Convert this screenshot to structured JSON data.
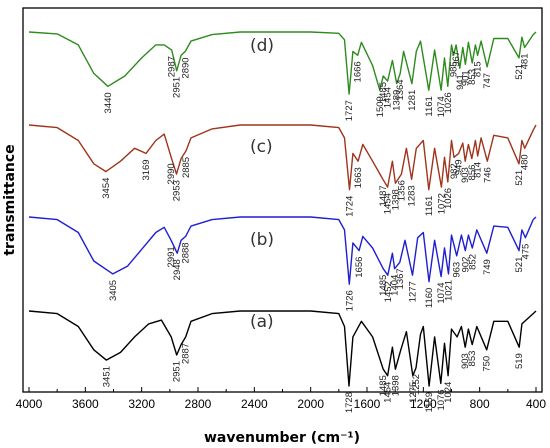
{
  "chart_data": {
    "type": "line",
    "xlabel": "wavenumber (cm⁻¹)",
    "ylabel": "transmittance",
    "xlim": [
      4000,
      400
    ],
    "x_ticks": [
      4000,
      3600,
      3200,
      2800,
      2400,
      2000,
      1600,
      1200,
      800,
      400
    ],
    "series": [
      {
        "name": "(d)",
        "color": "#2e8b1e",
        "points": [
          [
            4000,
            1.0
          ],
          [
            3800,
            0.985
          ],
          [
            3650,
            0.9
          ],
          [
            3540,
            0.68
          ],
          [
            3440,
            0.58
          ],
          [
            3320,
            0.66
          ],
          [
            3200,
            0.8
          ],
          [
            3100,
            0.9
          ],
          [
            3040,
            0.9
          ],
          [
            2987,
            0.86
          ],
          [
            2951,
            0.7
          ],
          [
            2920,
            0.82
          ],
          [
            2890,
            0.85
          ],
          [
            2850,
            0.93
          ],
          [
            2700,
            0.98
          ],
          [
            2500,
            1.0
          ],
          [
            2000,
            1.0
          ],
          [
            1800,
            0.99
          ],
          [
            1760,
            0.94
          ],
          [
            1727,
            0.52
          ],
          [
            1700,
            0.85
          ],
          [
            1666,
            0.82
          ],
          [
            1640,
            0.92
          ],
          [
            1560,
            0.74
          ],
          [
            1509,
            0.55
          ],
          [
            1485,
            0.66
          ],
          [
            1454,
            0.62
          ],
          [
            1420,
            0.78
          ],
          [
            1389,
            0.6
          ],
          [
            1364,
            0.68
          ],
          [
            1340,
            0.85
          ],
          [
            1281,
            0.6
          ],
          [
            1250,
            0.85
          ],
          [
            1220,
            0.93
          ],
          [
            1161,
            0.55
          ],
          [
            1120,
            0.86
          ],
          [
            1074,
            0.55
          ],
          [
            1050,
            0.8
          ],
          [
            1026,
            0.58
          ],
          [
            1000,
            0.9
          ],
          [
            985,
            0.82
          ],
          [
            967,
            0.9
          ],
          [
            941,
            0.72
          ],
          [
            920,
            0.88
          ],
          [
            901,
            0.75
          ],
          [
            880,
            0.92
          ],
          [
            853,
            0.76
          ],
          [
            830,
            0.9
          ],
          [
            815,
            0.82
          ],
          [
            790,
            0.93
          ],
          [
            747,
            0.73
          ],
          [
            700,
            0.95
          ],
          [
            600,
            0.95
          ],
          [
            521,
            0.8
          ],
          [
            500,
            0.96
          ],
          [
            481,
            0.88
          ],
          [
            420,
            0.98
          ],
          [
            400,
            1.0
          ]
        ],
        "peak_labels": [
          "3440",
          "2987",
          "2951",
          "2890",
          "1727",
          "1666",
          "1509",
          "1485",
          "1454",
          "1389",
          "1364",
          "1281",
          "1161",
          "1074",
          "1026",
          "985",
          "967",
          "941",
          "901",
          "853",
          "815",
          "747",
          "521",
          "481"
        ]
      },
      {
        "name": "(c)",
        "color": "#a0341c",
        "points": [
          [
            4000,
            1.0
          ],
          [
            3800,
            0.98
          ],
          [
            3650,
            0.88
          ],
          [
            3540,
            0.7
          ],
          [
            3454,
            0.64
          ],
          [
            3350,
            0.72
          ],
          [
            3250,
            0.82
          ],
          [
            3169,
            0.78
          ],
          [
            3100,
            0.88
          ],
          [
            3040,
            0.93
          ],
          [
            2990,
            0.75
          ],
          [
            2953,
            0.62
          ],
          [
            2920,
            0.74
          ],
          [
            2885,
            0.8
          ],
          [
            2850,
            0.9
          ],
          [
            2700,
            0.97
          ],
          [
            2500,
            1.0
          ],
          [
            2000,
            1.0
          ],
          [
            1800,
            0.98
          ],
          [
            1760,
            0.9
          ],
          [
            1724,
            0.5
          ],
          [
            1700,
            0.78
          ],
          [
            1663,
            0.72
          ],
          [
            1630,
            0.85
          ],
          [
            1560,
            0.72
          ],
          [
            1487,
            0.58
          ],
          [
            1454,
            0.52
          ],
          [
            1420,
            0.72
          ],
          [
            1398,
            0.55
          ],
          [
            1356,
            0.62
          ],
          [
            1320,
            0.82
          ],
          [
            1283,
            0.58
          ],
          [
            1250,
            0.82
          ],
          [
            1200,
            0.88
          ],
          [
            1161,
            0.5
          ],
          [
            1120,
            0.82
          ],
          [
            1072,
            0.52
          ],
          [
            1050,
            0.75
          ],
          [
            1026,
            0.56
          ],
          [
            1000,
            0.88
          ],
          [
            982,
            0.75
          ],
          [
            949,
            0.78
          ],
          [
            920,
            0.86
          ],
          [
            903,
            0.72
          ],
          [
            880,
            0.85
          ],
          [
            856,
            0.74
          ],
          [
            830,
            0.88
          ],
          [
            814,
            0.76
          ],
          [
            790,
            0.9
          ],
          [
            746,
            0.72
          ],
          [
            700,
            0.92
          ],
          [
            600,
            0.9
          ],
          [
            521,
            0.7
          ],
          [
            500,
            0.88
          ],
          [
            480,
            0.82
          ],
          [
            420,
            0.96
          ],
          [
            400,
            1.0
          ]
        ],
        "peak_labels": [
          "3454",
          "3169",
          "2990",
          "2953",
          "2885",
          "1724",
          "1663",
          "1487",
          "1454",
          "1398",
          "1356",
          "1283",
          "1161",
          "1072",
          "1026",
          "982",
          "949",
          "903",
          "856",
          "814",
          "746",
          "521",
          "480"
        ]
      },
      {
        "name": "(b)",
        "color": "#1f1fd0",
        "points": [
          [
            4000,
            1.0
          ],
          [
            3800,
            0.98
          ],
          [
            3650,
            0.88
          ],
          [
            3540,
            0.66
          ],
          [
            3405,
            0.56
          ],
          [
            3300,
            0.62
          ],
          [
            3200,
            0.75
          ],
          [
            3100,
            0.88
          ],
          [
            3040,
            0.92
          ],
          [
            2991,
            0.82
          ],
          [
            2948,
            0.72
          ],
          [
            2920,
            0.82
          ],
          [
            2888,
            0.85
          ],
          [
            2850,
            0.93
          ],
          [
            2700,
            0.98
          ],
          [
            2500,
            1.0
          ],
          [
            2000,
            1.0
          ],
          [
            1800,
            0.98
          ],
          [
            1760,
            0.9
          ],
          [
            1726,
            0.48
          ],
          [
            1700,
            0.8
          ],
          [
            1656,
            0.74
          ],
          [
            1630,
            0.85
          ],
          [
            1560,
            0.76
          ],
          [
            1485,
            0.6
          ],
          [
            1452,
            0.55
          ],
          [
            1420,
            0.72
          ],
          [
            1404,
            0.6
          ],
          [
            1367,
            0.65
          ],
          [
            1330,
            0.82
          ],
          [
            1277,
            0.55
          ],
          [
            1240,
            0.84
          ],
          [
            1200,
            0.88
          ],
          [
            1160,
            0.5
          ],
          [
            1120,
            0.82
          ],
          [
            1074,
            0.54
          ],
          [
            1050,
            0.76
          ],
          [
            1021,
            0.56
          ],
          [
            1000,
            0.86
          ],
          [
            963,
            0.7
          ],
          [
            930,
            0.86
          ],
          [
            902,
            0.74
          ],
          [
            880,
            0.86
          ],
          [
            852,
            0.76
          ],
          [
            820,
            0.9
          ],
          [
            749,
            0.72
          ],
          [
            700,
            0.93
          ],
          [
            600,
            0.92
          ],
          [
            521,
            0.74
          ],
          [
            500,
            0.9
          ],
          [
            475,
            0.84
          ],
          [
            420,
            0.98
          ],
          [
            400,
            1.0
          ]
        ],
        "peak_labels": [
          "3405",
          "2991",
          "2948",
          "2888",
          "1726",
          "1656",
          "1485",
          "1452",
          "1404",
          "1367",
          "1277",
          "1160",
          "1074",
          "1021",
          "963",
          "902",
          "852",
          "749",
          "521",
          "475"
        ]
      },
      {
        "name": "(a)",
        "color": "#000000",
        "points": [
          [
            4000,
            1.0
          ],
          [
            3800,
            0.98
          ],
          [
            3650,
            0.88
          ],
          [
            3540,
            0.7
          ],
          [
            3451,
            0.62
          ],
          [
            3350,
            0.68
          ],
          [
            3250,
            0.8
          ],
          [
            3150,
            0.9
          ],
          [
            3060,
            0.93
          ],
          [
            2990,
            0.8
          ],
          [
            2951,
            0.66
          ],
          [
            2920,
            0.74
          ],
          [
            2887,
            0.8
          ],
          [
            2850,
            0.92
          ],
          [
            2700,
            0.98
          ],
          [
            2500,
            1.0
          ],
          [
            2000,
            1.0
          ],
          [
            1800,
            0.98
          ],
          [
            1760,
            0.88
          ],
          [
            1728,
            0.42
          ],
          [
            1700,
            0.8
          ],
          [
            1640,
            0.92
          ],
          [
            1560,
            0.8
          ],
          [
            1485,
            0.55
          ],
          [
            1454,
            0.5
          ],
          [
            1420,
            0.72
          ],
          [
            1398,
            0.55
          ],
          [
            1360,
            0.7
          ],
          [
            1320,
            0.84
          ],
          [
            1275,
            0.5
          ],
          [
            1252,
            0.56
          ],
          [
            1220,
            0.82
          ],
          [
            1200,
            0.88
          ],
          [
            1159,
            0.42
          ],
          [
            1120,
            0.8
          ],
          [
            1076,
            0.44
          ],
          [
            1050,
            0.75
          ],
          [
            1024,
            0.5
          ],
          [
            1000,
            0.86
          ],
          [
            960,
            0.8
          ],
          [
            930,
            0.88
          ],
          [
            903,
            0.72
          ],
          [
            880,
            0.86
          ],
          [
            853,
            0.74
          ],
          [
            820,
            0.88
          ],
          [
            750,
            0.7
          ],
          [
            700,
            0.92
          ],
          [
            600,
            0.92
          ],
          [
            519,
            0.72
          ],
          [
            500,
            0.9
          ],
          [
            420,
            0.98
          ],
          [
            400,
            1.0
          ]
        ],
        "peak_labels": [
          "3451",
          "2951",
          "2887",
          "1728",
          "1485",
          "1454",
          "1398",
          "1275",
          "1252",
          "1159",
          "1076",
          "1024",
          "903",
          "853",
          "750",
          "519"
        ]
      }
    ],
    "legend": "inline panel labels (a)-(d)"
  }
}
